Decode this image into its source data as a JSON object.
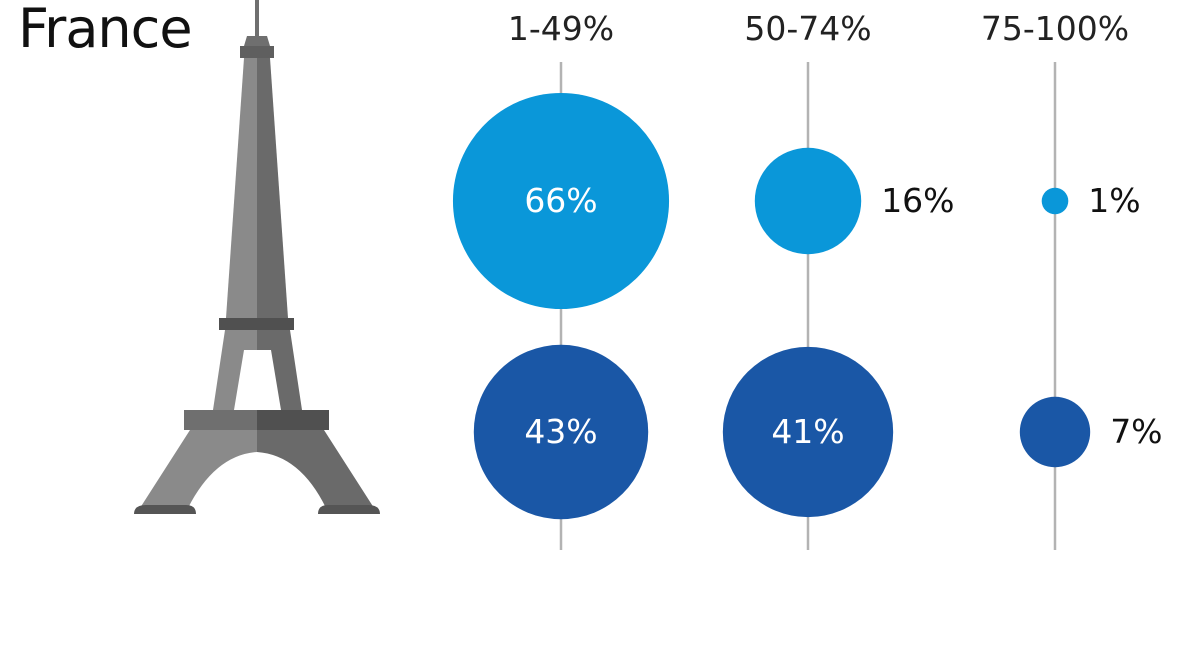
{
  "title": "France",
  "colors": {
    "series_light": "#0a97d9",
    "series_dark": "#1a57a6",
    "axis_line": "#b3b3b3",
    "tower_light": "#8a8a8a",
    "tower_dark": "#5f5f5f"
  },
  "icon": "eiffel-tower-icon",
  "chart_data": {
    "type": "bubble",
    "categories": [
      "1-49%",
      "50-74%",
      "75-100%"
    ],
    "series": [
      {
        "color": "#0a97d9",
        "values": [
          66,
          16,
          1
        ],
        "labels": [
          "66%",
          "16%",
          "1%"
        ]
      },
      {
        "color": "#1a57a6",
        "values": [
          43,
          41,
          7
        ],
        "labels": [
          "43%",
          "41%",
          "7%"
        ]
      }
    ]
  }
}
